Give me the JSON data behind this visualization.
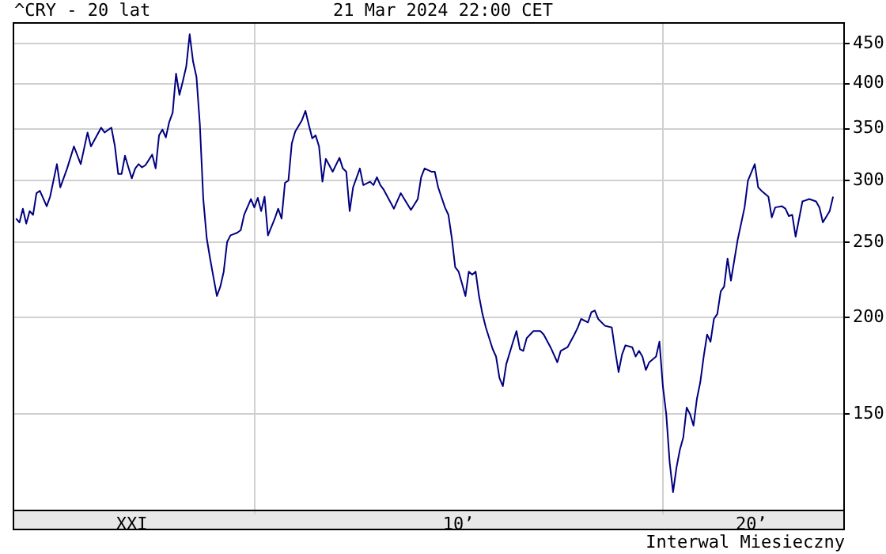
{
  "chart_data": {
    "type": "line",
    "title": "^CRY - 20 lat",
    "subtitle": "21 Mar 2024 22:00 CET",
    "annotations": [
      "Interwal Miesieczny"
    ],
    "log": "y",
    "grid": true,
    "legend": false,
    "marker": "none",
    "line_style": "solid",
    "xlim": [
      "2004-02",
      "2024-06"
    ],
    "xticks": [
      {
        "value": "2007-01",
        "label": "XXI"
      },
      {
        "value": "2010-01",
        "label": null
      },
      {
        "value": "2015-01",
        "label": "10’"
      },
      {
        "value": "2020-01",
        "label": null
      },
      {
        "value": "2022-03",
        "label": "20’"
      }
    ],
    "ylim": [
      113,
      480
    ],
    "yticks": [
      150,
      200,
      250,
      300,
      350,
      400,
      450
    ],
    "series": [
      {
        "color": "#000080",
        "x": [
          "2004-03",
          "2004-04",
          "2004-05",
          "2004-06",
          "2004-07",
          "2004-08",
          "2004-09",
          "2004-10",
          "2004-12",
          "2005-01",
          "2005-03",
          "2005-04",
          "2005-06",
          "2005-08",
          "2005-10",
          "2005-12",
          "2006-01",
          "2006-04",
          "2006-05",
          "2006-07",
          "2006-08",
          "2006-09",
          "2006-10",
          "2006-11",
          "2006-12",
          "2007-01",
          "2007-02",
          "2007-03",
          "2007-04",
          "2007-05",
          "2007-07",
          "2007-08",
          "2007-09",
          "2007-10",
          "2007-11",
          "2007-12",
          "2008-01",
          "2008-02",
          "2008-03",
          "2008-04",
          "2008-05",
          "2008-06",
          "2008-07",
          "2008-08",
          "2008-09",
          "2008-10",
          "2008-11",
          "2008-12",
          "2009-01",
          "2009-02",
          "2009-03",
          "2009-04",
          "2009-05",
          "2009-06",
          "2009-08",
          "2009-09",
          "2009-10",
          "2009-12",
          "2010-01",
          "2010-02",
          "2010-03",
          "2010-04",
          "2010-05",
          "2010-07",
          "2010-08",
          "2010-09",
          "2010-10",
          "2010-11",
          "2010-12",
          "2011-01",
          "2011-03",
          "2011-04",
          "2011-05",
          "2011-06",
          "2011-07",
          "2011-08",
          "2011-09",
          "2011-10",
          "2011-11",
          "2011-12",
          "2012-02",
          "2012-03",
          "2012-04",
          "2012-05",
          "2012-06",
          "2012-08",
          "2012-09",
          "2012-11",
          "2012-12",
          "2013-01",
          "2013-02",
          "2013-03",
          "2013-06",
          "2013-08",
          "2013-11",
          "2014-01",
          "2014-02",
          "2014-03",
          "2014-05",
          "2014-06",
          "2014-07",
          "2014-09",
          "2014-10",
          "2014-11",
          "2014-12",
          "2015-01",
          "2015-02",
          "2015-03",
          "2015-04",
          "2015-05",
          "2015-06",
          "2015-07",
          "2015-08",
          "2015-09",
          "2015-11",
          "2015-12",
          "2016-01",
          "2016-02",
          "2016-03",
          "2016-05",
          "2016-06",
          "2016-07",
          "2016-08",
          "2016-09",
          "2016-11",
          "2017-01",
          "2017-02",
          "2017-04",
          "2017-06",
          "2017-07",
          "2017-09",
          "2017-11",
          "2017-12",
          "2018-01",
          "2018-03",
          "2018-04",
          "2018-05",
          "2018-06",
          "2018-08",
          "2018-10",
          "2018-11",
          "2018-12",
          "2019-01",
          "2019-02",
          "2019-04",
          "2019-05",
          "2019-06",
          "2019-07",
          "2019-08",
          "2019-09",
          "2019-11",
          "2019-12",
          "2020-01",
          "2020-02",
          "2020-03",
          "2020-04",
          "2020-05",
          "2020-06",
          "2020-07",
          "2020-08",
          "2020-09",
          "2020-10",
          "2020-11",
          "2020-12",
          "2021-01",
          "2021-02",
          "2021-03",
          "2021-04",
          "2021-05",
          "2021-06",
          "2021-07",
          "2021-08",
          "2021-09",
          "2021-11",
          "2022-01",
          "2022-02",
          "2022-04",
          "2022-05",
          "2022-06",
          "2022-08",
          "2022-09",
          "2022-10",
          "2022-12",
          "2023-01",
          "2023-02",
          "2023-03",
          "2023-04",
          "2023-06",
          "2023-08",
          "2023-10",
          "2023-11",
          "2023-12",
          "2024-02",
          "2024-03"
        ],
        "values": [
          268,
          265,
          276,
          264,
          274,
          271,
          289,
          291,
          278,
          286,
          315,
          294,
          311,
          332,
          315,
          346,
          332,
          351,
          346,
          351,
          333,
          306,
          306,
          323,
          312,
          302,
          311,
          315,
          312,
          314,
          324,
          311,
          343,
          349,
          341,
          357,
          367,
          412,
          387,
          403,
          421,
          463,
          427,
          408,
          354,
          284,
          253,
          238,
          225,
          213,
          219,
          229,
          250,
          255,
          257,
          259,
          271,
          284,
          277,
          285,
          274,
          286,
          255,
          268,
          276,
          268,
          298,
          300,
          335,
          347,
          359,
          369,
          354,
          340,
          343,
          332,
          299,
          320,
          314,
          308,
          321,
          311,
          308,
          274,
          294,
          311,
          296,
          299,
          296,
          303,
          296,
          292,
          276,
          289,
          275,
          284,
          303,
          311,
          308,
          308,
          294,
          277,
          271,
          253,
          232,
          229,
          221,
          213,
          229,
          227,
          229,
          213,
          202,
          194,
          182,
          178,
          167,
          163,
          174,
          186,
          192,
          182,
          181,
          188,
          192,
          192,
          190,
          183,
          175,
          181,
          183,
          190,
          194,
          199,
          197,
          203,
          204,
          199,
          195,
          194,
          181,
          170,
          179,
          184,
          183,
          178,
          181,
          178,
          171,
          175,
          178,
          186,
          163,
          150,
          130,
          119,
          128,
          135,
          140,
          153,
          150,
          145,
          157,
          165,
          178,
          190,
          186,
          199,
          202,
          216,
          219,
          238,
          223,
          252,
          277,
          300,
          315,
          294,
          291,
          286,
          269,
          277,
          278,
          276,
          270,
          271,
          254,
          282,
          284,
          282,
          277,
          265,
          274,
          286
        ]
      }
    ]
  }
}
